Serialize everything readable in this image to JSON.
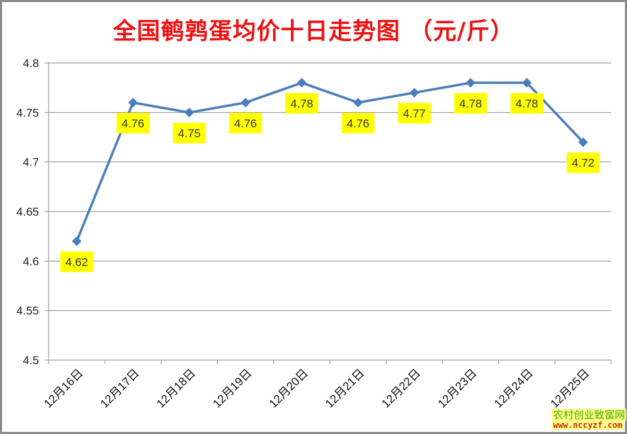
{
  "chart_data": {
    "type": "line",
    "title": "全国鹌鹑蛋均价十日走势图 （元/斤）",
    "xlabel": "",
    "ylabel": "",
    "categories": [
      "12月16日",
      "12月17日",
      "12月18日",
      "12月19日",
      "12月20日",
      "12月21日",
      "12月22日",
      "12月23日",
      "12月24日",
      "12月25日"
    ],
    "series": [
      {
        "name": "均价",
        "values": [
          4.62,
          4.76,
          4.75,
          4.76,
          4.78,
          4.76,
          4.77,
          4.78,
          4.78,
          4.72
        ],
        "color": "#4a7ebb"
      }
    ],
    "data_labels": [
      "4.62",
      "4.76",
      "4.75",
      "4.76",
      "4.78",
      "4.76",
      "4.77",
      "4.78",
      "4.78",
      "4.72"
    ],
    "ylim": [
      4.5,
      4.8
    ],
    "yticks": [
      "4.5",
      "4.55",
      "4.6",
      "4.65",
      "4.7",
      "4.75",
      "4.8"
    ],
    "grid": true,
    "legend": "none",
    "label_bg_color": "#ffff00",
    "title_color": "#ee1111"
  },
  "watermark": {
    "line1": "农村创业致富网",
    "line2": "www.nccyzf.com"
  }
}
